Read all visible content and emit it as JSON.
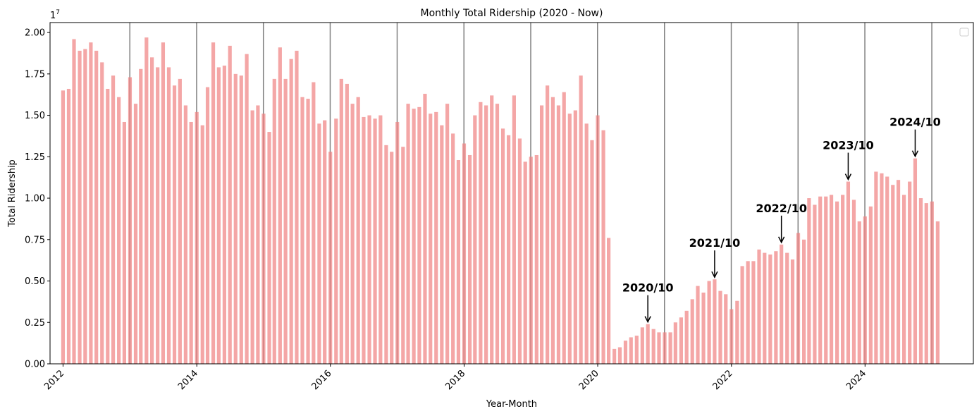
{
  "chart_data": {
    "type": "bar",
    "title": "Monthly Total Ridership (2020 - Now)",
    "xlabel": "Year-Month",
    "ylabel": "Total Ridership",
    "y_offset_label": "1e7",
    "ylim": [
      0,
      20600000
    ],
    "xlim": [
      "2011-10-22",
      "2025-08-15"
    ],
    "y_ticks": [
      0,
      2500000,
      5000000,
      7500000,
      10000000,
      12500000,
      15000000,
      17500000,
      20000000
    ],
    "y_tick_labels": [
      "0.00",
      "0.25",
      "0.50",
      "0.75",
      "1.00",
      "1.25",
      "1.50",
      "1.75",
      "2.00"
    ],
    "x_ticks": [
      "2012-01-01",
      "2014-01-01",
      "2016-01-01",
      "2018-01-01",
      "2020-01-01",
      "2022-01-01",
      "2024-01-01"
    ],
    "x_tick_labels": [
      "2012",
      "2014",
      "2016",
      "2018",
      "2020",
      "2022",
      "2024"
    ],
    "start_month": "2012-01",
    "values": [
      16500000,
      16600000,
      19600000,
      18900000,
      19000000,
      19400000,
      18900000,
      18200000,
      16600000,
      17400000,
      16100000,
      14600000,
      17300000,
      15700000,
      17800000,
      19700000,
      18500000,
      17900000,
      19400000,
      17900000,
      16800000,
      17200000,
      15600000,
      14600000,
      15200000,
      14400000,
      16700000,
      19400000,
      17900000,
      18000000,
      19200000,
      17500000,
      17400000,
      18700000,
      15300000,
      15600000,
      15100000,
      14000000,
      17200000,
      19100000,
      17200000,
      18400000,
      18900000,
      16100000,
      16000000,
      17000000,
      14500000,
      14700000,
      12800000,
      14800000,
      17200000,
      16900000,
      15700000,
      16100000,
      14900000,
      15000000,
      14800000,
      15000000,
      13200000,
      12800000,
      14600000,
      13100000,
      15700000,
      15400000,
      15500000,
      16300000,
      15100000,
      15200000,
      14400000,
      15700000,
      13900000,
      12300000,
      13300000,
      12600000,
      15000000,
      15800000,
      15600000,
      16200000,
      15700000,
      14200000,
      13800000,
      16200000,
      13600000,
      12200000,
      12500000,
      12600000,
      15600000,
      16800000,
      16100000,
      15600000,
      16400000,
      15100000,
      15300000,
      17400000,
      14500000,
      13500000,
      15000000,
      14100000,
      7600000,
      900000,
      1000000,
      1400000,
      1600000,
      1700000,
      2200000,
      2400000,
      2100000,
      1900000,
      1900000,
      1900000,
      2500000,
      2800000,
      3200000,
      3900000,
      4700000,
      4300000,
      5000000,
      5100000,
      4400000,
      4200000,
      3300000,
      3800000,
      5900000,
      6200000,
      6200000,
      6900000,
      6700000,
      6600000,
      6800000,
      7200000,
      6700000,
      6300000,
      7900000,
      7500000,
      10000000,
      9600000,
      10100000,
      10100000,
      10200000,
      9800000,
      10200000,
      11000000,
      9900000,
      8600000,
      8900000,
      9500000,
      11600000,
      11500000,
      11300000,
      10800000,
      11100000,
      10200000,
      11000000,
      12400000,
      10000000,
      9700000,
      9800000,
      8600000
    ],
    "bar_color": "#f08080",
    "vlines": [
      "2012-12-31",
      "2013-12-31",
      "2014-12-31",
      "2015-12-31",
      "2016-12-31",
      "2017-12-31",
      "2018-12-31",
      "2019-12-31",
      "2020-12-31",
      "2021-12-31",
      "2022-12-31",
      "2023-12-31",
      "2024-12-31"
    ],
    "vline_color": "#808080",
    "annotations": [
      {
        "label": "2020/10",
        "month": "2020-10"
      },
      {
        "label": "2021/10",
        "month": "2021-10"
      },
      {
        "label": "2022/10",
        "month": "2022-10"
      },
      {
        "label": "2023/10",
        "month": "2023-10"
      },
      {
        "label": "2024/10",
        "month": "2024-10"
      }
    ],
    "legend": {
      "position": "top-right",
      "entries": []
    },
    "grid": false
  }
}
